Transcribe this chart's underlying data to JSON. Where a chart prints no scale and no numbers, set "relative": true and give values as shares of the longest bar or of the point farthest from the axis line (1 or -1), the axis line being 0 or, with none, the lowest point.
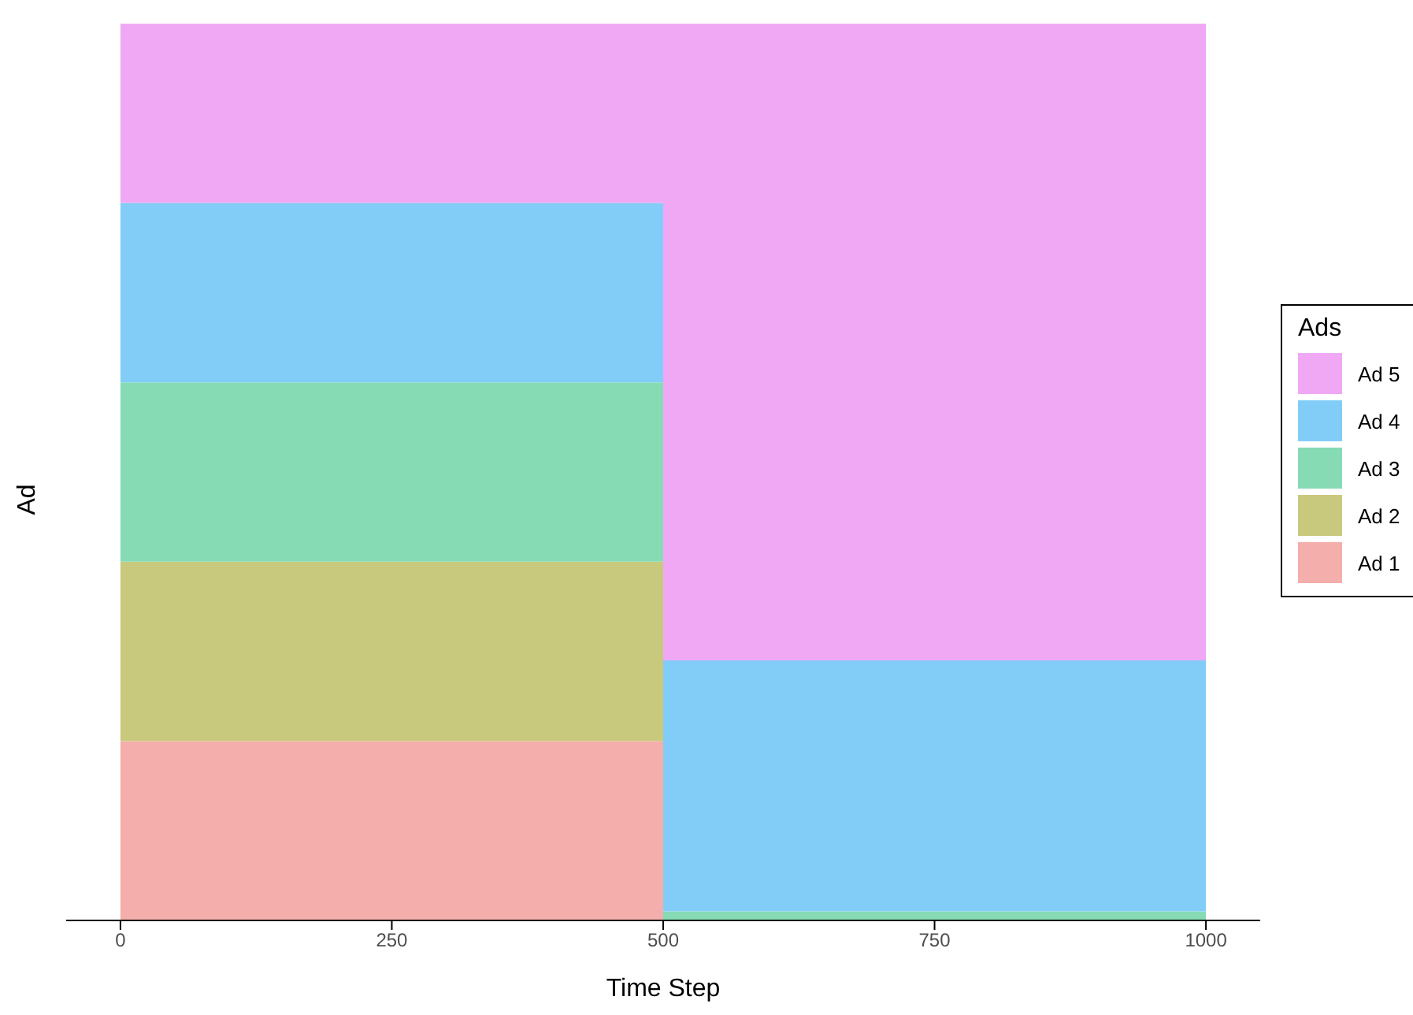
{
  "chart_data": {
    "type": "area",
    "xlabel": "Time Step",
    "ylabel": "Ad",
    "legend_title": "Ads",
    "relative": true,
    "stacked": true,
    "legend": "right",
    "grid": false,
    "x": [
      0,
      500,
      500,
      1000
    ],
    "xlim": [
      -50,
      1050
    ],
    "xticks": [
      0,
      250,
      500,
      750,
      1000
    ],
    "series": [
      {
        "name": "Ad 1",
        "color": "#f4aeab",
        "values": [
          0.2,
          0.2,
          0,
          0
        ]
      },
      {
        "name": "Ad 2",
        "color": "#c9c97e",
        "values": [
          0.2,
          0.2,
          0,
          0
        ]
      },
      {
        "name": "Ad 3",
        "color": "#86dbb5",
        "values": [
          0.2,
          0.2,
          0.01,
          0.01
        ]
      },
      {
        "name": "Ad 4",
        "color": "#82cdf7",
        "values": [
          0.2,
          0.2,
          0.28,
          0.28
        ]
      },
      {
        "name": "Ad 5",
        "color": "#f0a8f5",
        "values": [
          0.2,
          0.2,
          0.71,
          0.71
        ]
      }
    ]
  }
}
